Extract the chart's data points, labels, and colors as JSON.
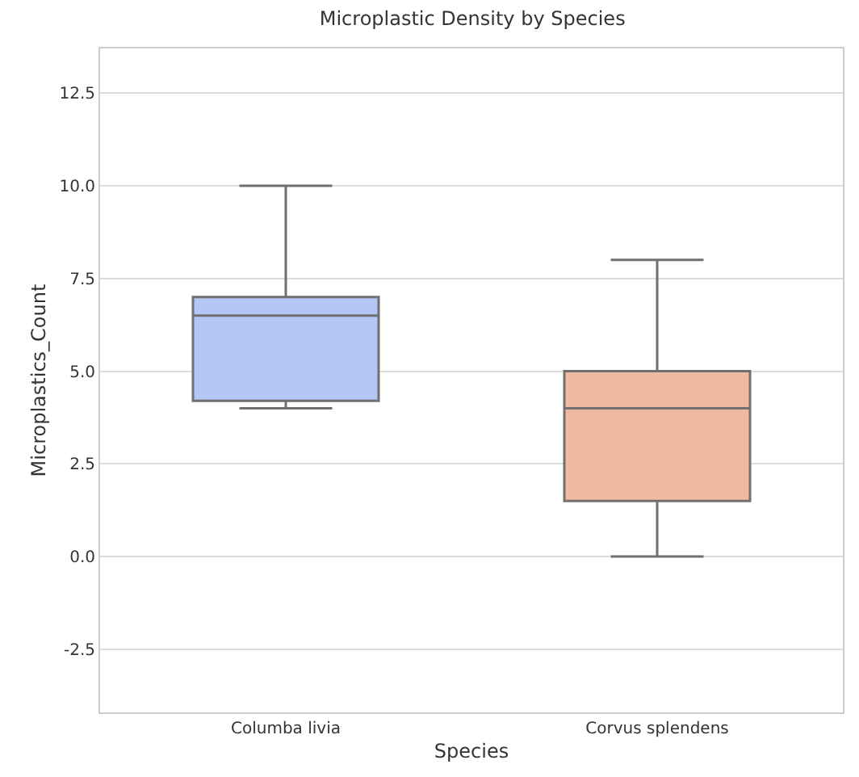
{
  "chart_data": {
    "type": "box",
    "title": "Microplastic Density by Species",
    "xlabel": "Species",
    "ylabel": "Microplastics_Count",
    "categories": [
      "Columba livia",
      "Corvus splendens"
    ],
    "colors": [
      "#b3c7f7",
      "#f0b9a0"
    ],
    "boxes": [
      {
        "low": 4,
        "q1": 4.2,
        "median": 6.5,
        "q3": 7,
        "high": 10
      },
      {
        "low": 0,
        "q1": 1.5,
        "median": 4,
        "q3": 5,
        "high": 8
      }
    ],
    "ylim": [
      -4.2,
      13.7
    ],
    "yticks": [
      -2.5,
      {
        "value": 0,
        "label": "0.0"
      },
      2.5,
      {
        "value": 5,
        "label": "5.0"
      },
      7.5,
      {
        "value": 10,
        "label": "10.0"
      },
      12.5
    ],
    "grid": "y"
  }
}
